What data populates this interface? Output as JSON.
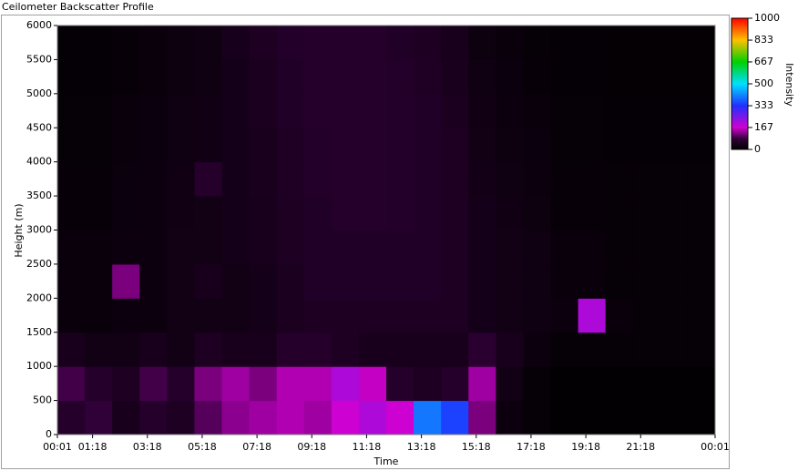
{
  "chart_data": {
    "type": "heatmap",
    "title": "Ceilometer Backscatter Profile",
    "x_label": "Time",
    "y_label": "Height (m)",
    "colorbar_label": "Intensity",
    "xlim": [
      0.0167,
      24.0167
    ],
    "xticks": [
      {
        "value": 0.0167,
        "label": "00:01"
      },
      {
        "value": 1.3,
        "label": "01:18"
      },
      {
        "value": 3.3,
        "label": "03:18"
      },
      {
        "value": 5.3,
        "label": "05:18"
      },
      {
        "value": 7.3,
        "label": "07:18"
      },
      {
        "value": 9.3,
        "label": "09:18"
      },
      {
        "value": 11.3,
        "label": "11:18"
      },
      {
        "value": 13.3,
        "label": "13:18"
      },
      {
        "value": 15.3,
        "label": "15:18"
      },
      {
        "value": 17.3,
        "label": "17:18"
      },
      {
        "value": 19.3,
        "label": "19:18"
      },
      {
        "value": 21.3,
        "label": "21:18"
      },
      {
        "value": 24.0167,
        "label": "00:01"
      }
    ],
    "ylim": [
      0,
      6000
    ],
    "yticks": [
      0,
      500,
      1000,
      1500,
      2000,
      2500,
      3000,
      3500,
      4000,
      4500,
      5000,
      5500,
      6000
    ],
    "clim": [
      0,
      1000
    ],
    "cticks": [
      0,
      167,
      333,
      500,
      667,
      833,
      1000
    ],
    "colorscale": [
      [
        0,
        "#000000"
      ],
      [
        80,
        "#300038"
      ],
      [
        167,
        "#d000d0"
      ],
      [
        333,
        "#2030ff"
      ],
      [
        500,
        "#00e0ff"
      ],
      [
        667,
        "#00d000"
      ],
      [
        833,
        "#ffc000"
      ],
      [
        1000,
        "#ff0000"
      ]
    ],
    "x_bins": [
      0.0167,
      1.0167,
      2.0167,
      3.0167,
      4.0167,
      5.0167,
      6.0167,
      7.0167,
      8.0167,
      9.0167,
      10.0167,
      11.0167,
      12.0167,
      13.0167,
      14.0167,
      15.0167,
      16.0167,
      17.0167,
      18.0167,
      19.0167,
      20.0167,
      21.0167,
      22.0167,
      23.0167,
      24.0167
    ],
    "y_bins": [
      0,
      500,
      1000,
      1500,
      2000,
      2500,
      3000,
      3500,
      4000,
      4500,
      5000,
      5500,
      6000
    ],
    "z": [
      [
        60,
        80,
        40,
        60,
        50,
        100,
        130,
        140,
        150,
        140,
        170,
        200,
        170,
        400,
        350,
        120,
        20,
        10,
        5,
        5,
        5,
        5,
        5,
        5
      ],
      [
        90,
        60,
        50,
        90,
        60,
        120,
        140,
        120,
        150,
        150,
        200,
        160,
        60,
        50,
        60,
        140,
        30,
        10,
        5,
        5,
        5,
        5,
        5,
        5
      ],
      [
        40,
        30,
        30,
        40,
        30,
        50,
        40,
        40,
        60,
        60,
        50,
        40,
        40,
        40,
        40,
        70,
        40,
        20,
        10,
        10,
        10,
        10,
        10,
        10
      ],
      [
        15,
        15,
        20,
        20,
        30,
        30,
        30,
        35,
        45,
        50,
        50,
        50,
        50,
        50,
        50,
        35,
        30,
        25,
        20,
        200,
        15,
        10,
        10,
        10
      ],
      [
        15,
        15,
        120,
        20,
        30,
        40,
        30,
        35,
        45,
        55,
        55,
        55,
        55,
        55,
        50,
        35,
        30,
        25,
        15,
        15,
        10,
        10,
        10,
        10
      ],
      [
        15,
        15,
        20,
        20,
        30,
        30,
        35,
        40,
        50,
        55,
        55,
        55,
        55,
        55,
        50,
        35,
        30,
        25,
        15,
        15,
        10,
        10,
        10,
        10
      ],
      [
        12,
        12,
        18,
        20,
        28,
        30,
        35,
        40,
        50,
        55,
        60,
        60,
        58,
        55,
        50,
        35,
        28,
        22,
        12,
        12,
        10,
        10,
        10,
        10
      ],
      [
        12,
        12,
        18,
        20,
        28,
        60,
        35,
        42,
        52,
        58,
        60,
        60,
        58,
        55,
        50,
        32,
        25,
        20,
        12,
        12,
        10,
        10,
        10,
        10
      ],
      [
        10,
        10,
        15,
        18,
        25,
        28,
        35,
        42,
        52,
        58,
        60,
        60,
        58,
        55,
        48,
        30,
        22,
        18,
        10,
        10,
        8,
        8,
        8,
        8
      ],
      [
        10,
        10,
        15,
        18,
        25,
        28,
        35,
        45,
        55,
        60,
        60,
        62,
        58,
        55,
        45,
        28,
        20,
        15,
        10,
        10,
        8,
        8,
        8,
        8
      ],
      [
        8,
        8,
        12,
        15,
        22,
        25,
        35,
        45,
        55,
        60,
        62,
        62,
        58,
        52,
        42,
        25,
        18,
        12,
        8,
        8,
        6,
        6,
        6,
        6
      ],
      [
        8,
        8,
        12,
        15,
        22,
        25,
        38,
        48,
        58,
        62,
        62,
        60,
        55,
        50,
        40,
        22,
        15,
        10,
        8,
        8,
        6,
        6,
        6,
        6
      ]
    ]
  }
}
